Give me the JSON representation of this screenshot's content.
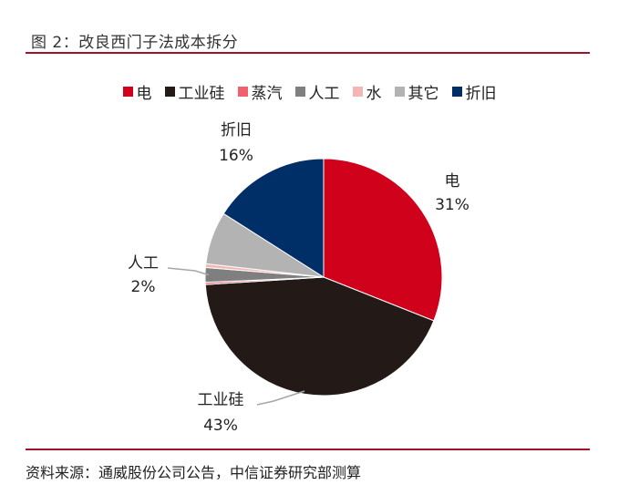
{
  "figure": {
    "title": "图 2：改良西门子法成本拆分",
    "source": "资料来源：通威股份公司公告，中信证券研究部测算"
  },
  "chart_data": {
    "type": "pie",
    "title": "图 2：改良西门子法成本拆分",
    "slices": [
      {
        "name": "电",
        "value": 31,
        "color": "#d0021b",
        "label": "电",
        "pct_label": "31%"
      },
      {
        "name": "工业硅",
        "value": 43,
        "color": "#231916",
        "label": "工业硅",
        "pct_label": "43%"
      },
      {
        "name": "蒸汽",
        "value": 0.3,
        "color": "#f0606e",
        "label": "",
        "pct_label": ""
      },
      {
        "name": "人工",
        "value": 2,
        "color": "#7f7f7f",
        "label": "人工",
        "pct_label": "2%"
      },
      {
        "name": "水",
        "value": 0.5,
        "color": "#f4b6b4",
        "label": "",
        "pct_label": ""
      },
      {
        "name": "其它",
        "value": 7.2,
        "color": "#b3b3b3",
        "label": "",
        "pct_label": ""
      },
      {
        "name": "折旧",
        "value": 16,
        "color": "#002f67",
        "label": "折旧",
        "pct_label": "16%"
      }
    ],
    "legend_position": "top",
    "start_angle": "12 o'clock",
    "direction": "clockwise"
  }
}
